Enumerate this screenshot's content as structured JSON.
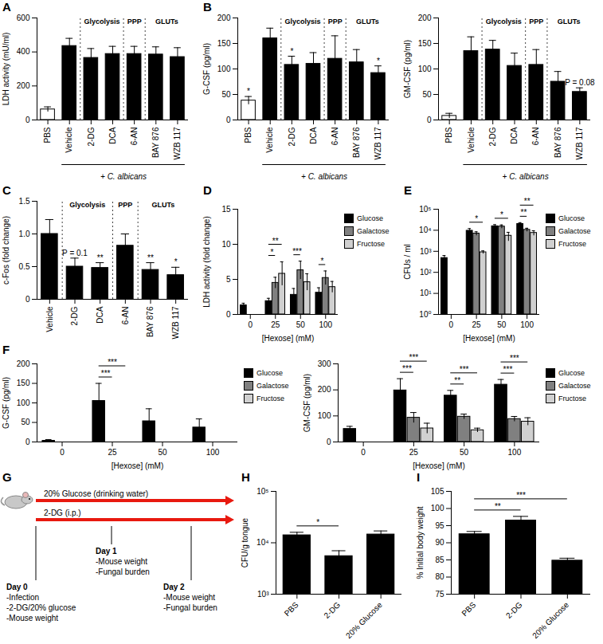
{
  "chart_data": [
    {
      "panel": "A",
      "type": "bar",
      "categories": [
        "PBS",
        "Vehicle",
        "2-DG",
        "DCA",
        "6-AN",
        "BAY 876",
        "WZB 117"
      ],
      "values": [
        62,
        435,
        365,
        388,
        388,
        385,
        370
      ],
      "errors": [
        15,
        45,
        55,
        45,
        45,
        45,
        55
      ],
      "colors": [
        "#ffffff",
        "#000000",
        "#000000",
        "#000000",
        "#000000",
        "#000000",
        "#000000"
      ],
      "ylabel": "LDH activity (mU/ml)",
      "ylim": [
        0,
        600
      ],
      "yticks": [
        0,
        200,
        400,
        600
      ],
      "groups": [
        {
          "label": "Glycolysis",
          "categories": [
            "2-DG",
            "DCA"
          ]
        },
        {
          "label": "PPP",
          "categories": [
            "6-AN"
          ]
        },
        {
          "label": "GLUTs",
          "categories": [
            "BAY 876",
            "WZB 117"
          ]
        }
      ],
      "bracket": {
        "text": "+ C. albicans",
        "from": "Vehicle",
        "to": "WZB 117"
      }
    },
    {
      "panel": "B",
      "type": "bar",
      "categories": [
        "PBS",
        "Vehicle",
        "2-DG",
        "DCA",
        "6-AN",
        "BAY 876",
        "WZB 117"
      ],
      "values": [
        38,
        160,
        108,
        110,
        120,
        113,
        92
      ],
      "errors": [
        8,
        20,
        17,
        22,
        45,
        25,
        14
      ],
      "colors": [
        "#ffffff",
        "#000000",
        "#000000",
        "#000000",
        "#000000",
        "#000000",
        "#000000"
      ],
      "ylabel": "G-CSF (pg/ml)",
      "ylim": [
        0,
        200
      ],
      "yticks": [
        0,
        50,
        100,
        150,
        200
      ],
      "groups": [
        {
          "label": "Glycolysis",
          "categories": [
            "2-DG",
            "DCA"
          ]
        },
        {
          "label": "PPP",
          "categories": [
            "6-AN"
          ]
        },
        {
          "label": "GLUTs",
          "categories": [
            "BAY 876",
            "WZB 117"
          ]
        }
      ],
      "bracket": {
        "text": "+ C. albicans",
        "from": "Vehicle",
        "to": "WZB 117"
      },
      "annotations": [
        {
          "category": "PBS",
          "text": "*"
        },
        {
          "category": "2-DG",
          "text": "*"
        },
        {
          "category": "WZB 117",
          "text": "*"
        }
      ]
    },
    {
      "type": "bar",
      "categories": [
        "PBS",
        "Vehicle",
        "2-DG",
        "DCA",
        "6-AN",
        "BAY 876",
        "WZB 117"
      ],
      "values": [
        8,
        135,
        138,
        106,
        108,
        75,
        55
      ],
      "errors": [
        5,
        28,
        18,
        25,
        30,
        20,
        8
      ],
      "colors": [
        "#ffffff",
        "#000000",
        "#000000",
        "#000000",
        "#000000",
        "#000000",
        "#000000"
      ],
      "ylabel": "GM-CSF (pg/ml)",
      "ylim": [
        0,
        200
      ],
      "yticks": [
        0,
        50,
        100,
        150,
        200
      ],
      "groups": [
        {
          "label": "Glycolysis",
          "categories": [
            "2-DG",
            "DCA"
          ]
        },
        {
          "label": "PPP",
          "categories": [
            "6-AN"
          ]
        },
        {
          "label": "GLUTs",
          "categories": [
            "BAY 876",
            "WZB 117"
          ]
        }
      ],
      "bracket": {
        "text": "+ C. albicans",
        "from": "Vehicle",
        "to": "WZB 117"
      },
      "annotations": [
        {
          "category": "WZB 117",
          "text": "P = 0.08"
        }
      ]
    },
    {
      "panel": "C",
      "type": "bar",
      "categories": [
        "Vehicle",
        "2-DG",
        "DCA",
        "6-AN",
        "BAY 876",
        "WZB 117"
      ],
      "values": [
        1.0,
        0.5,
        0.48,
        0.82,
        0.45,
        0.37
      ],
      "errors": [
        0.22,
        0.13,
        0.08,
        0.18,
        0.11,
        0.12
      ],
      "colors": [
        "#000000",
        "#000000",
        "#000000",
        "#000000",
        "#000000",
        "#000000"
      ],
      "ylabel": "c-Fos (fold change)",
      "ylim": [
        0,
        1.5
      ],
      "yticks": [
        0,
        0.5,
        {
          "value": 1,
          "label": "1.0"
        },
        1.5
      ],
      "groups": [
        {
          "label": "Glycolysis",
          "categories": [
            "2-DG",
            "DCA"
          ]
        },
        {
          "label": "PPP",
          "categories": [
            "6-AN"
          ]
        },
        {
          "label": "GLUTs",
          "categories": [
            "BAY 876",
            "WZB 117"
          ]
        }
      ],
      "annotations": [
        {
          "category": "2-DG",
          "text": "P = 0.1"
        },
        {
          "category": "DCA",
          "text": "**"
        },
        {
          "category": "BAY 876",
          "text": "**"
        },
        {
          "category": "WZB 117",
          "text": "*"
        }
      ]
    },
    {
      "panel": "D",
      "type": "bar",
      "categories": [
        0,
        25,
        50,
        100
      ],
      "xlabel": "[Hexose] (mM)",
      "ylabel": "LDH activity (fold change)",
      "ylim": [
        0,
        15
      ],
      "yticks": [
        0,
        5,
        10,
        15
      ],
      "legend": "right",
      "series": [
        {
          "name": "Glucose",
          "color": "#000000",
          "values": [
            1.3,
            1.9,
            2.8,
            3.1
          ],
          "errors": [
            0.3,
            0.4,
            0.9,
            0.7
          ]
        },
        {
          "name": "Galactose",
          "color": "#808080",
          "values": [
            null,
            4.5,
            6.3,
            5.2
          ],
          "errors": [
            null,
            0.8,
            1.3,
            1.0
          ]
        },
        {
          "name": "Fructose",
          "color": "#d0d0d0",
          "values": [
            null,
            5.8,
            4.6,
            3.9
          ],
          "errors": [
            null,
            1.7,
            1.2,
            0.8
          ]
        }
      ],
      "brackets": [
        {
          "category": 25,
          "from": "Glucose",
          "to": "Galactose",
          "text": "*"
        },
        {
          "category": 25,
          "from": "Glucose",
          "to": "Fructose",
          "text": "**"
        },
        {
          "category": 50,
          "from": "Glucose",
          "to": "Galactose",
          "text": "***"
        },
        {
          "category": 100,
          "from": "Glucose",
          "to": "Galactose",
          "text": "*"
        }
      ]
    },
    {
      "panel": "E",
      "type": "bar",
      "log": "y",
      "categories": [
        0,
        25,
        50,
        100
      ],
      "xlabel": "[Hexose] (mM)",
      "ylabel": "CFUs / ml",
      "ylim": [
        1,
        100000
      ],
      "yticks": [
        {
          "value": 1,
          "label": "10⁰"
        },
        {
          "value": 10,
          "label": "10¹"
        },
        {
          "value": 100,
          "label": "10²"
        },
        {
          "value": 1000,
          "label": "10³"
        },
        {
          "value": 10000,
          "label": "10⁴"
        },
        {
          "value": 100000,
          "label": "10⁵"
        }
      ],
      "legend": "right",
      "series": [
        {
          "name": "Glucose",
          "color": "#000000",
          "values": [
            480,
            9500,
            15500,
            20000
          ],
          "errors": [
            150,
            2500,
            3000,
            3000
          ]
        },
        {
          "name": "Galactose",
          "color": "#808080",
          "values": [
            null,
            7000,
            15000,
            10500
          ],
          "errors": [
            null,
            1500,
            3000,
            2000
          ]
        },
        {
          "name": "Fructose",
          "color": "#d0d0d0",
          "values": [
            null,
            900,
            5500,
            7500
          ],
          "errors": [
            null,
            150,
            2500,
            2000
          ]
        }
      ],
      "brackets": [
        {
          "category": 25,
          "from": "Glucose",
          "to": "Fructose",
          "text": "*"
        },
        {
          "category": 50,
          "from": "Glucose",
          "to": "Fructose",
          "text": "*"
        },
        {
          "category": 100,
          "from": "Glucose",
          "to": "Galactose",
          "text": "**"
        },
        {
          "category": 100,
          "from": "Glucose",
          "to": "Fructose",
          "text": "**"
        }
      ]
    },
    {
      "panel": "F",
      "type": "bar",
      "categories": [
        0,
        25,
        50,
        100
      ],
      "xlabel": "[Hexose] (mM)",
      "ylabel": "G-CSF (pg/ml)",
      "ylim": [
        0,
        200
      ],
      "yticks": [
        0,
        50,
        100,
        150,
        200
      ],
      "legend": "right",
      "series": [
        {
          "name": "Glucose",
          "color": "#000000",
          "values": [
            3,
            105,
            53,
            37
          ],
          "errors": [
            3,
            45,
            32,
            22
          ]
        },
        {
          "name": "Galactose",
          "color": "#808080",
          "values": [
            null,
            0,
            0,
            0
          ],
          "errors": [
            null,
            0,
            0,
            0
          ]
        },
        {
          "name": "Fructose",
          "color": "#d0d0d0",
          "values": [
            null,
            0,
            0,
            0
          ],
          "errors": [
            null,
            0,
            0,
            0
          ]
        }
      ],
      "brackets": [
        {
          "category": 25,
          "from": "Glucose",
          "to": "Galactose",
          "text": "***"
        },
        {
          "category": 25,
          "from": "Glucose",
          "to": "Fructose",
          "text": "***"
        }
      ]
    },
    {
      "type": "bar",
      "categories": [
        0,
        25,
        50,
        100
      ],
      "xlabel": "[Hexose] (mM)",
      "ylabel": "GM-CSF (pg/ml)",
      "ylim": [
        0,
        300
      ],
      "yticks": [
        0,
        100,
        200,
        300
      ],
      "legend": "right",
      "series": [
        {
          "name": "Glucose",
          "color": "#000000",
          "values": [
            50,
            198,
            178,
            220
          ],
          "errors": [
            10,
            45,
            20,
            20
          ]
        },
        {
          "name": "Galactose",
          "color": "#808080",
          "values": [
            null,
            93,
            97,
            88
          ],
          "errors": [
            null,
            20,
            10,
            10
          ]
        },
        {
          "name": "Fructose",
          "color": "#d0d0d0",
          "values": [
            null,
            52,
            45,
            78
          ],
          "errors": [
            null,
            20,
            8,
            15
          ]
        }
      ],
      "brackets": [
        {
          "category": 25,
          "from": "Glucose",
          "to": "Galactose",
          "text": "***"
        },
        {
          "category": 25,
          "from": "Glucose",
          "to": "Fructose",
          "text": "***"
        },
        {
          "category": 50,
          "from": "Glucose",
          "to": "Galactose",
          "text": "**"
        },
        {
          "category": 50,
          "from": "Glucose",
          "to": "Fructose",
          "text": "***"
        },
        {
          "category": 100,
          "from": "Glucose",
          "to": "Galactose",
          "text": "***"
        },
        {
          "category": 100,
          "from": "Glucose",
          "to": "Fructose",
          "text": "***"
        }
      ]
    },
    {
      "panel": "H",
      "type": "bar",
      "log": "y",
      "categories": [
        "PBS",
        "2-DG",
        "20% Glucose"
      ],
      "values": [
        14000,
        5500,
        14500
      ],
      "errors": [
        2000,
        1500,
        2500
      ],
      "colors": [
        "#000000",
        "#000000",
        "#000000"
      ],
      "ylabel": "CFU/g tongue",
      "ylim": [
        1000,
        100000
      ],
      "yticks": [
        {
          "value": 1000,
          "label": "10³"
        },
        {
          "value": 10000,
          "label": "10⁴"
        },
        {
          "value": 100000,
          "label": "10⁵"
        }
      ],
      "brackets": [
        {
          "from": "PBS",
          "to": "2-DG",
          "text": "*"
        }
      ]
    },
    {
      "panel": "I",
      "type": "bar",
      "categories": [
        "PBS",
        "2-DG",
        "20% Glucose"
      ],
      "values": [
        92.5,
        96.5,
        84.8
      ],
      "errors": [
        0.8,
        1.2,
        0.7
      ],
      "colors": [
        "#000000",
        "#000000",
        "#000000"
      ],
      "ylabel": "% Initial body weight",
      "ylim": [
        75,
        105
      ],
      "yticks": [
        75,
        80,
        85,
        90,
        95,
        100,
        105
      ],
      "brackets": [
        {
          "from": "PBS",
          "to": "2-DG",
          "text": "**"
        },
        {
          "from": "PBS",
          "to": "20% Glucose",
          "text": "***"
        }
      ]
    }
  ],
  "diagram": {
    "panel": "G",
    "arrows": [
      {
        "label": "20% Glucose (drinking water)",
        "color": "#e8190f"
      },
      {
        "label": "2-DG (i.p.)",
        "color": "#e8190f"
      }
    ],
    "timepoints": [
      {
        "day": "Day 0",
        "items": [
          "-Infection",
          "-2-DG/20% glucose",
          "-Mouse weight"
        ]
      },
      {
        "day": "Day 1",
        "items": [
          "-Mouse weight",
          "-Fungal burden"
        ]
      },
      {
        "day": "Day 2",
        "items": [
          "-Mouse weight",
          "-Fungal burden"
        ]
      }
    ]
  }
}
